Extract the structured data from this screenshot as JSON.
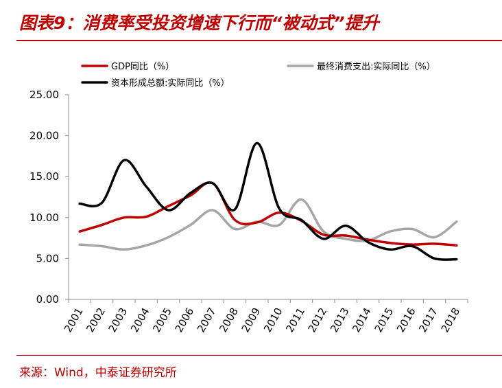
{
  "header": {
    "title": "图表9：消费率受投资增速下行而“被动式”提升"
  },
  "footer": {
    "source": "来源：Wind，中泰证券研究所"
  },
  "colors": {
    "accent": "#c00000",
    "gdp": "#c00000",
    "consumption": "#a6a6a6",
    "capital": "#000000"
  },
  "chart_data": {
    "type": "line",
    "title": "",
    "xlabel": "",
    "ylabel": "",
    "ylim": [
      0,
      25
    ],
    "yticks": [
      "0.00",
      "5.00",
      "10.00",
      "15.00",
      "20.00",
      "25.00"
    ],
    "grid": false,
    "legend_position": "top",
    "categories": [
      "2001",
      "2002",
      "2003",
      "2004",
      "2005",
      "2006",
      "2007",
      "2008",
      "2009",
      "2010",
      "2011",
      "2012",
      "2013",
      "2014",
      "2015",
      "2016",
      "2017",
      "2018"
    ],
    "series": [
      {
        "name": "GDP同比（%）",
        "color": "#c00000",
        "values": [
          8.3,
          9.1,
          10.0,
          10.1,
          11.4,
          12.7,
          14.2,
          9.7,
          9.4,
          10.6,
          9.6,
          7.9,
          7.8,
          7.3,
          6.9,
          6.7,
          6.8,
          6.6
        ]
      },
      {
        "name": "最终消费支出:实际同比（%）",
        "color": "#a6a6a6",
        "values": [
          6.7,
          6.5,
          6.1,
          6.6,
          7.6,
          9.1,
          10.9,
          8.6,
          9.5,
          9.1,
          12.2,
          8.3,
          7.4,
          7.2,
          8.3,
          8.6,
          7.6,
          9.5
        ]
      },
      {
        "name": "资本形成总额:实际同比（%）",
        "color": "#000000",
        "values": [
          11.7,
          11.8,
          17.0,
          13.8,
          10.9,
          13.0,
          14.2,
          11.0,
          19.1,
          11.1,
          9.7,
          7.4,
          9.0,
          7.0,
          6.1,
          6.5,
          5.0,
          4.9
        ]
      }
    ]
  }
}
